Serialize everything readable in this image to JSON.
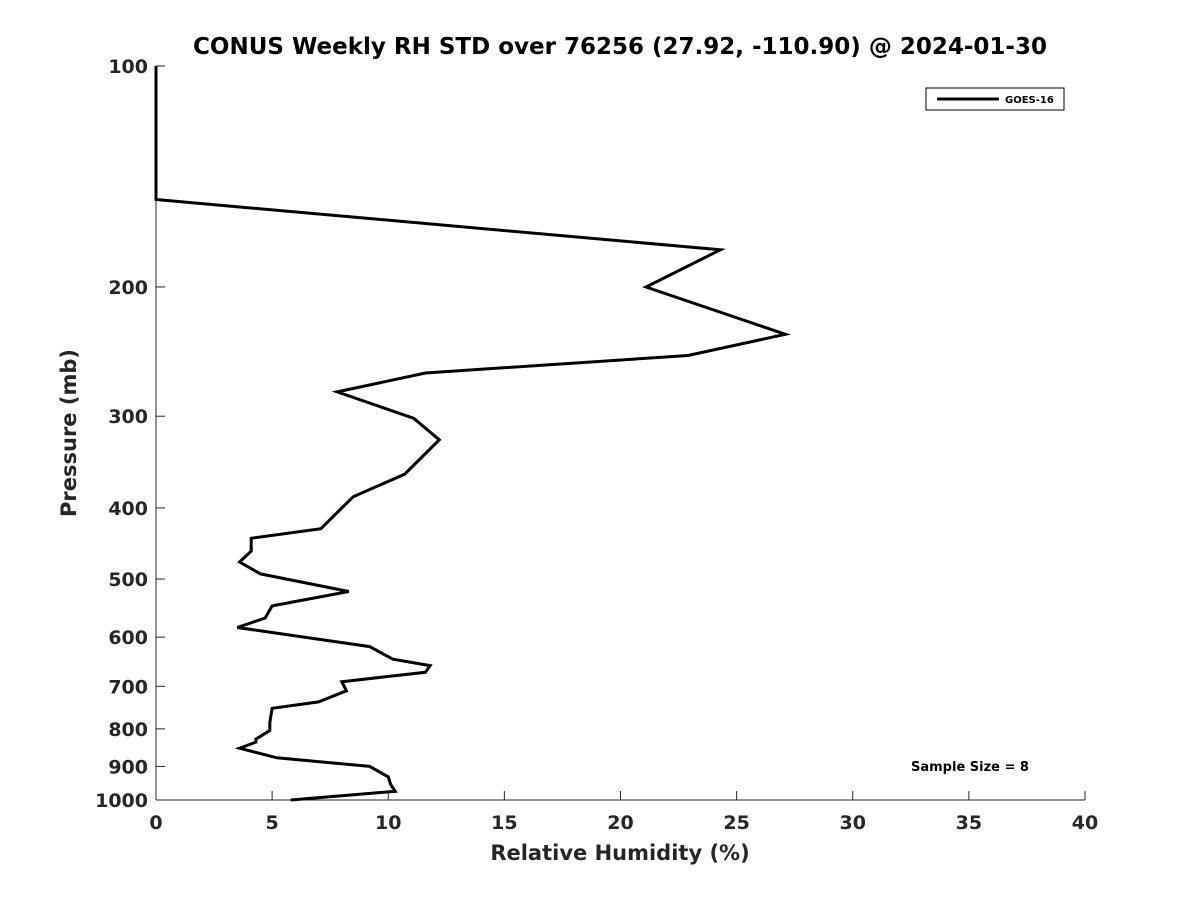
{
  "chart_data": {
    "type": "line",
    "title": "CONUS Weekly RH STD over 76256 (27.92, -110.90) @ 2024-01-30",
    "xlabel": "Relative Humidity (%)",
    "ylabel": "Pressure (mb)",
    "xlim": [
      0,
      40
    ],
    "ylim": [
      100,
      1000
    ],
    "y_scale": "log",
    "y_reversed": true,
    "grid": false,
    "x_ticks": [
      0,
      5,
      10,
      15,
      20,
      25,
      30,
      35,
      40
    ],
    "y_ticks": [
      100,
      200,
      300,
      400,
      500,
      600,
      700,
      800,
      900,
      1000
    ],
    "legend": {
      "position": "top-right",
      "entries": [
        "GOES-16"
      ]
    },
    "series": [
      {
        "name": "GOES-16",
        "color": "#000000",
        "x": [
          5.8,
          10.3,
          10.1,
          10.0,
          9.2,
          5.2,
          3.6,
          4.3,
          4.3,
          4.9,
          4.9,
          5.0,
          7.0,
          8.2,
          8.0,
          11.6,
          11.8,
          10.2,
          9.2,
          3.5,
          4.7,
          5.0,
          8.3,
          4.5,
          3.6,
          4.1,
          4.1,
          7.1,
          8.0,
          8.5,
          10.7,
          12.2,
          11.1,
          7.8,
          11.6,
          22.9,
          27.1,
          21.1,
          24.3,
          0.0,
          0.0
        ],
        "y": [
          1000,
          973,
          952,
          930,
          900,
          876,
          850,
          834,
          826,
          804,
          785,
          750,
          735,
          710,
          690,
          670,
          656,
          643,
          618,
          582,
          565,
          544,
          520,
          492,
          474,
          458,
          440,
          427,
          400,
          386,
          360,
          323,
          302,
          278,
          262,
          248,
          232,
          200,
          178,
          152,
          100
        ]
      }
    ],
    "annotations": [
      "Sample Size = 8"
    ]
  }
}
